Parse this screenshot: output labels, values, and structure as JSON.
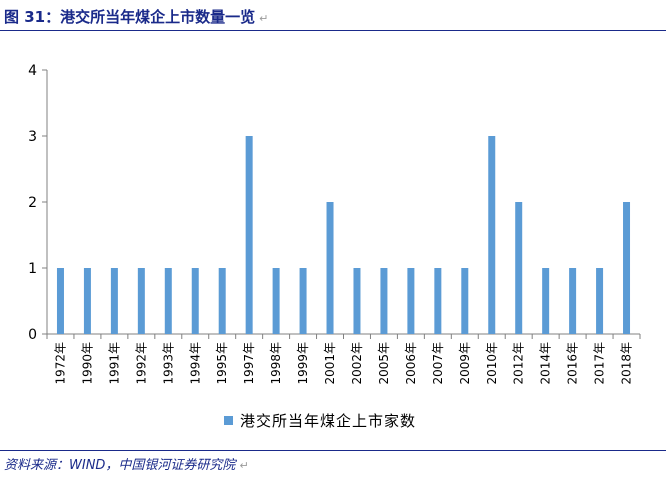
{
  "header": {
    "figure_title": "图 31：港交所当年煤企上市数量一览"
  },
  "footer": {
    "source": "资料来源：WIND，中国银河证券研究院"
  },
  "colors": {
    "bar": "#5B9BD5",
    "axis": "#808080",
    "text": "#1a2a8a"
  },
  "chart_data": {
    "type": "bar",
    "title": "",
    "xlabel": "",
    "ylabel": "",
    "categories": [
      "1972年",
      "1990年",
      "1991年",
      "1992年",
      "1993年",
      "1994年",
      "1995年",
      "1997年",
      "1998年",
      "1999年",
      "2001年",
      "2002年",
      "2005年",
      "2006年",
      "2007年",
      "2009年",
      "2010年",
      "2012年",
      "2014年",
      "2016年",
      "2017年",
      "2018年"
    ],
    "series": [
      {
        "name": "港交所当年煤企上市家数",
        "values": [
          1,
          1,
          1,
          1,
          1,
          1,
          1,
          3,
          1,
          1,
          2,
          1,
          1,
          1,
          1,
          1,
          3,
          2,
          1,
          1,
          1,
          2
        ]
      }
    ],
    "ylim": [
      0,
      4
    ],
    "yticks": [
      0,
      1,
      2,
      3,
      4
    ],
    "grid": false,
    "legend_position": "bottom"
  }
}
